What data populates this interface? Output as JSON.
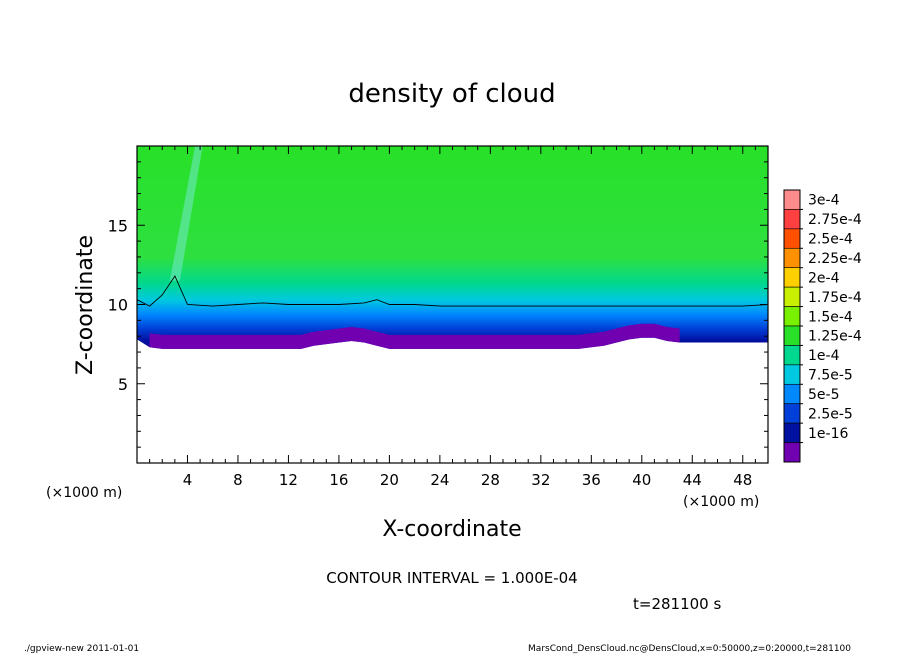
{
  "chart_data": {
    "type": "heatmap",
    "title": "density of cloud",
    "xlabel": "X-coordinate",
    "ylabel": "Z-coordinate",
    "x_unit": "(×1000 m)",
    "y_unit": "(×1000 m)",
    "xlim": [
      0,
      50
    ],
    "ylim": [
      0,
      20
    ],
    "x_major_ticks": [
      4,
      8,
      12,
      16,
      20,
      24,
      28,
      32,
      36,
      40,
      44,
      48
    ],
    "y_major_ticks": [
      5,
      10,
      15
    ],
    "x_tick_labels": [
      "4",
      "8",
      "12",
      "16",
      "20",
      "24",
      "28",
      "32",
      "36",
      "40",
      "44",
      "48"
    ],
    "y_tick_labels": [
      "5",
      "10",
      "15"
    ],
    "contour_level": 0.0001,
    "contour_line_z": [
      10.3,
      9.9,
      10.6,
      11.8,
      10.0,
      9.9,
      10.0,
      10.1,
      10.0,
      10.0,
      10.0,
      10.1,
      10.3,
      10.0,
      10.0,
      9.9,
      9.9,
      9.9,
      9.9,
      9.9,
      9.9,
      9.9,
      9.9,
      9.9,
      9.9,
      9.9,
      10.0
    ],
    "contour_line_x": [
      0,
      1,
      2,
      3,
      4,
      6,
      8,
      10,
      12,
      14,
      16,
      18,
      19,
      20,
      22,
      24,
      26,
      28,
      30,
      32,
      34,
      36,
      38,
      40,
      44,
      48,
      50
    ],
    "cloud_base_z": [
      7.3,
      7.2,
      7.2,
      7.2,
      7.2,
      7.2,
      7.2,
      7.2,
      7.2,
      7.2,
      7.2,
      7.2,
      7.2,
      7.4,
      7.5,
      7.6,
      7.7,
      7.6,
      7.4,
      7.2,
      7.2,
      7.2,
      7.2,
      7.2,
      7.2,
      7.2,
      7.2,
      7.2,
      7.2,
      7.2,
      7.2,
      7.2,
      7.2,
      7.2,
      7.2,
      7.3,
      7.4,
      7.6,
      7.8,
      7.9,
      7.9,
      7.7,
      7.6
    ],
    "cloud_base_x": [
      1,
      2,
      3,
      4,
      5,
      6,
      7,
      8,
      9,
      10,
      11,
      12,
      13,
      14,
      15,
      16,
      17,
      18,
      19,
      20,
      21,
      22,
      23,
      24,
      25,
      26,
      27,
      28,
      29,
      30,
      31,
      32,
      33,
      34,
      35,
      36,
      37,
      38,
      39,
      40,
      41,
      42,
      43
    ],
    "colorbar": {
      "levels": [
        "3e-4",
        "2.75e-4",
        "2.5e-4",
        "2.25e-4",
        "2e-4",
        "1.75e-4",
        "1.5e-4",
        "1.25e-4",
        "1e-4",
        "7.5e-5",
        "5e-5",
        "2.5e-5",
        "1e-16"
      ],
      "colors": [
        "#ff8c8c",
        "#ff4040",
        "#ff5000",
        "#ff9000",
        "#ffd000",
        "#c8f000",
        "#78f000",
        "#28e028",
        "#00d890",
        "#00c8e0",
        "#0088ff",
        "#0040d8",
        "#0010a0",
        "#7000b0"
      ]
    },
    "contour_interval_label": "CONTOUR INTERVAL = 1.000E-04",
    "time_label": "t=281100 s"
  },
  "footer": {
    "left": "./gpview-new  2011-01-01",
    "right": "MarsCond_DensCloud.nc@DensCloud,x=0:50000,z=0:20000,t=281100"
  }
}
